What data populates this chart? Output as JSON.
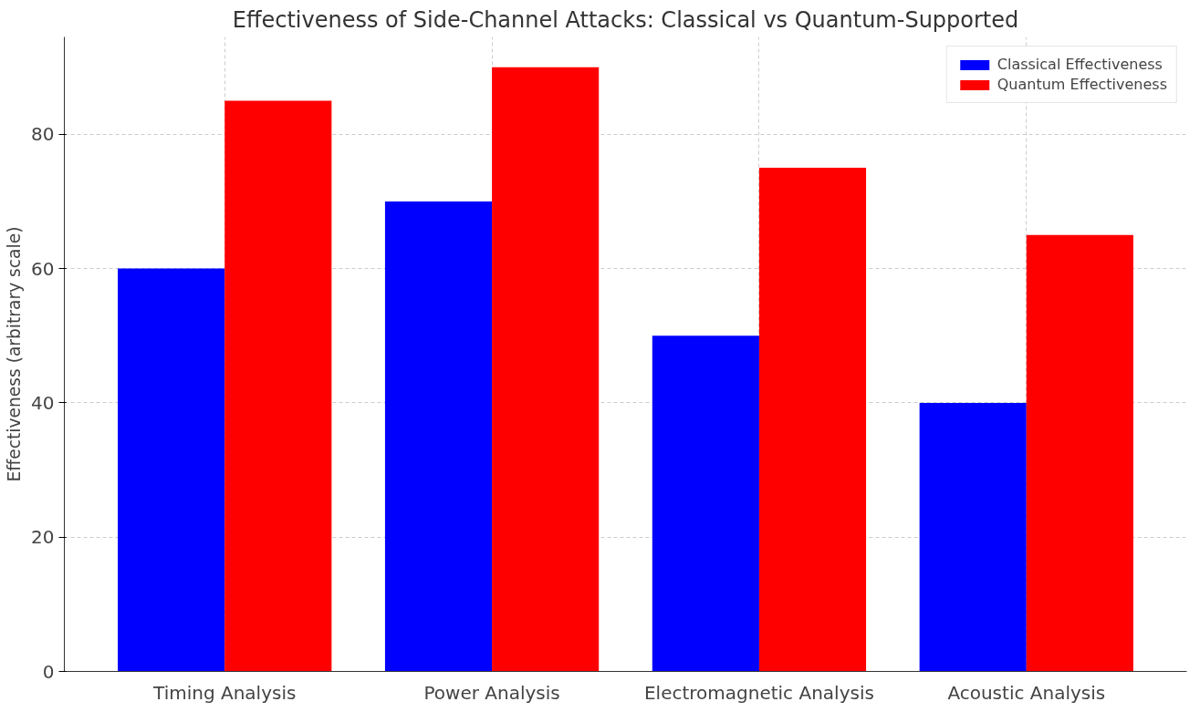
{
  "chart_data": {
    "type": "bar",
    "title": "Effectiveness of Side-Channel Attacks: Classical vs Quantum-Supported",
    "ylabel": "Effectiveness (arbitrary scale)",
    "categories": [
      "Timing Analysis",
      "Power Analysis",
      "Electromagnetic Analysis",
      "Acoustic Analysis"
    ],
    "series": [
      {
        "name": "Classical Effectiveness",
        "color": "#0000ff",
        "values": [
          60,
          70,
          50,
          40
        ]
      },
      {
        "name": "Quantum Effectiveness",
        "color": "#ff0000",
        "values": [
          85,
          90,
          75,
          65
        ]
      }
    ],
    "ylim": [
      0,
      94.5
    ],
    "yticks": [
      0,
      20,
      40,
      60,
      80
    ],
    "grid": true,
    "legend": "top right"
  }
}
